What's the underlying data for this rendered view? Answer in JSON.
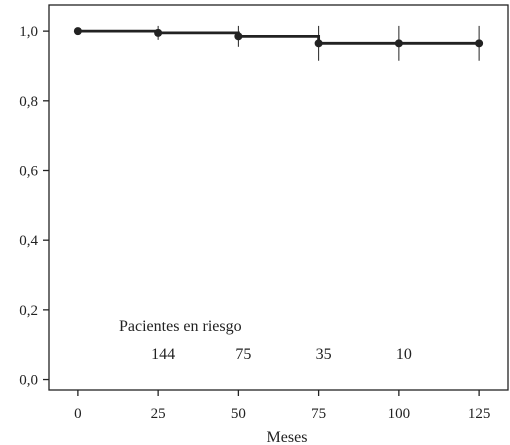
{
  "chart_data": {
    "type": "line",
    "title": "",
    "xlabel": "Meses",
    "ylabel": "",
    "xlim": [
      -9,
      134
    ],
    "ylim": [
      -0.03,
      1.075
    ],
    "x_ticks": [
      0,
      25,
      50,
      75,
      100,
      125
    ],
    "x_tick_labels": [
      "0",
      "25",
      "50",
      "75",
      "100",
      "125"
    ],
    "y_ticks": [
      0.0,
      0.2,
      0.4,
      0.6,
      0.8,
      1.0
    ],
    "y_tick_labels": [
      "0,0",
      "0,2",
      "0,4",
      "0,6",
      "0,8",
      "1,0"
    ],
    "grid": false,
    "series": [
      {
        "step": true,
        "color": "#222222",
        "x": [
          0,
          25,
          50,
          75,
          100,
          125
        ],
        "y": [
          1.0,
          0.995,
          0.985,
          0.965,
          0.965,
          0.965
        ],
        "error_bar": [
          0.0,
          0.02,
          0.03,
          0.05,
          0.05,
          0.05
        ]
      }
    ],
    "risk_table": {
      "title": "Pacientes en riesgo",
      "x": [
        25,
        50,
        75,
        100
      ],
      "counts": [
        "144",
        "75",
        "35",
        "10"
      ]
    }
  }
}
